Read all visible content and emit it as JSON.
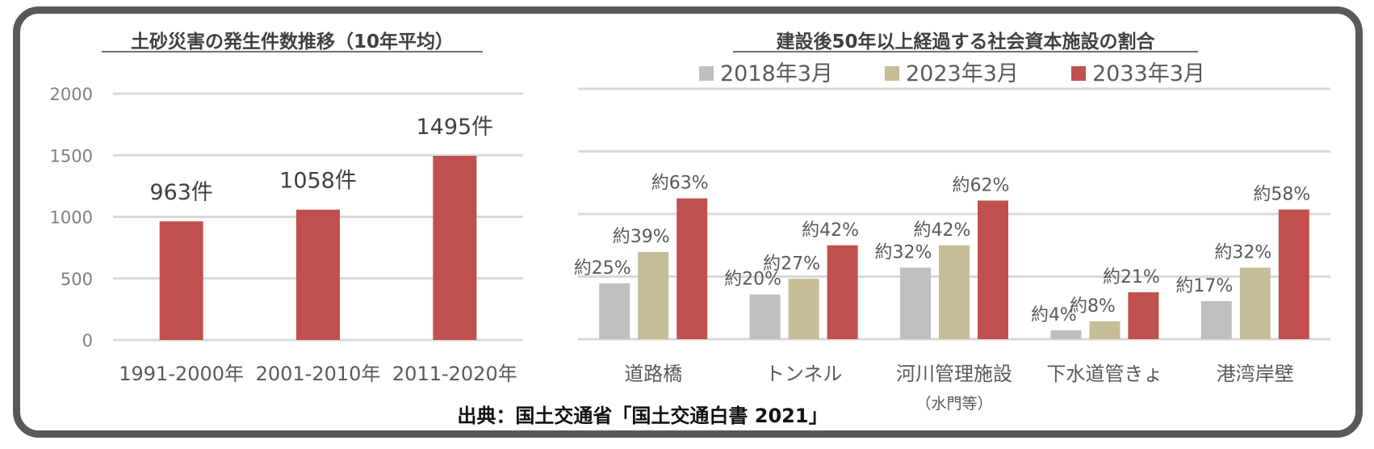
{
  "source": "出典：国土交通省「国土交通白書 2021」",
  "chart_data": [
    {
      "type": "bar",
      "title": "土砂災害の発生件数推移（10年平均）",
      "categories": [
        "1991-2000年",
        "2001-2010年",
        "2011-2020年"
      ],
      "values": [
        963,
        1058,
        1495
      ],
      "data_labels": [
        "963件",
        "1058件",
        "1495件"
      ],
      "ylim": [
        0,
        2000
      ],
      "yticks": [
        "0",
        "500",
        "1000",
        "1500",
        "2000"
      ],
      "ytick_values": [
        0,
        500,
        1000,
        1500,
        2000
      ],
      "grid": true,
      "colors": [
        "#c0504d"
      ]
    },
    {
      "type": "bar",
      "title": "建設後50年以上経過する社会資本施設の割合",
      "legend_position": "top",
      "categories": [
        "道路橋",
        "トンネル",
        "河川管理施設",
        "下水道管きょ",
        "港湾岸壁"
      ],
      "category_sublabels": [
        "",
        "",
        "（水門等）",
        "",
        ""
      ],
      "series": [
        {
          "name": "2018年3月",
          "color": "#bfbfbf",
          "values": [
            25,
            20,
            32,
            4,
            17
          ],
          "labels": [
            "約25%",
            "約20%",
            "約32%",
            "約4%",
            "約17%"
          ]
        },
        {
          "name": "2023年3月",
          "color": "#c4bd97",
          "values": [
            39,
            27,
            42,
            8,
            32
          ],
          "labels": [
            "約39%",
            "約27%",
            "約42%",
            "約8%",
            "約32%"
          ]
        },
        {
          "name": "2033年3月",
          "color": "#c0504d",
          "values": [
            63,
            42,
            62,
            21,
            58
          ],
          "labels": [
            "約63%",
            "約42%",
            "約62%",
            "約21%",
            "約58%"
          ]
        }
      ],
      "ylim": [
        0,
        112
      ],
      "grid": true
    }
  ]
}
